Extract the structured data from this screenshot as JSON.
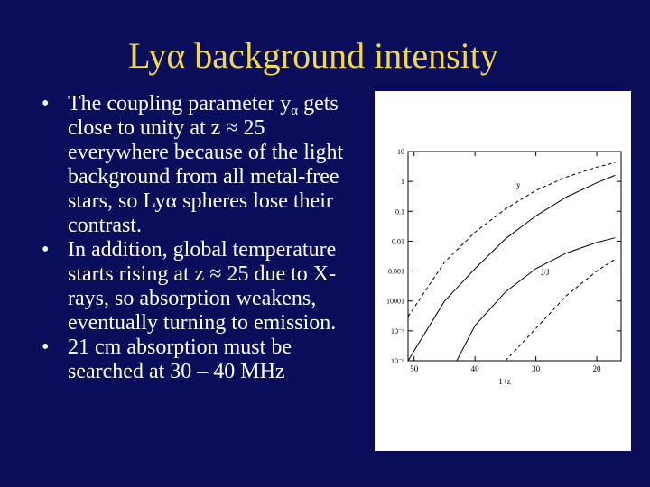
{
  "slide": {
    "title": "Lyα background intensity"
  },
  "bullets": [
    {
      "marker": "•",
      "before_sub": "The coupling parameter y",
      "subscript": "α",
      "after_sub": " gets close to unity at z ≈ 25 everywhere because of the light background from all metal-free stars, so Lyα spheres lose their contrast."
    },
    {
      "marker": "•",
      "text": "In addition, global temperature starts rising at z ≈ 25 due to X-rays, so absorption weakens, eventually turning to emission."
    },
    {
      "marker": "•",
      "text": "21 cm absorption must be searched at 30 – 40 MHz"
    }
  ],
  "figure": {
    "xlabel": "1+z",
    "curve_labels": [
      "y",
      "J/J"
    ],
    "chart_data": {
      "type": "line",
      "x_axis": {
        "label": "1+z",
        "ticks": [
          "50",
          "40",
          "30",
          "20"
        ],
        "reversed": true,
        "range": [
          51,
          16
        ]
      },
      "y_axis": {
        "ticks": [
          "10",
          "1",
          "0.1",
          "0.01",
          "0.001",
          "10001",
          "10⁻⁶",
          "10⁻⁶"
        ],
        "scale": "log",
        "range": [
          1e-06,
          10
        ]
      },
      "series": [
        {
          "style": "solid",
          "x": [
            51,
            45,
            40,
            35,
            30,
            25,
            20,
            17
          ],
          "y": [
            1e-06,
            0.0001,
            0.0012,
            0.012,
            0.07,
            0.3,
            0.9,
            1.6
          ]
        },
        {
          "style": "dashed",
          "x": [
            51,
            45,
            40,
            35,
            30,
            25,
            20,
            17
          ],
          "y": [
            3e-05,
            0.002,
            0.02,
            0.12,
            0.5,
            1.4,
            3.0,
            4.2
          ]
        },
        {
          "style": "solid",
          "x": [
            43,
            40,
            35,
            30,
            25,
            20,
            17
          ],
          "y": [
            1e-06,
            1.5e-05,
            0.0002,
            0.0012,
            0.004,
            0.009,
            0.013
          ]
        },
        {
          "style": "dashed",
          "x": [
            35,
            30,
            25,
            20,
            17
          ],
          "y": [
            1e-06,
            1.2e-05,
            0.00015,
            0.001,
            0.0025
          ]
        }
      ]
    }
  }
}
